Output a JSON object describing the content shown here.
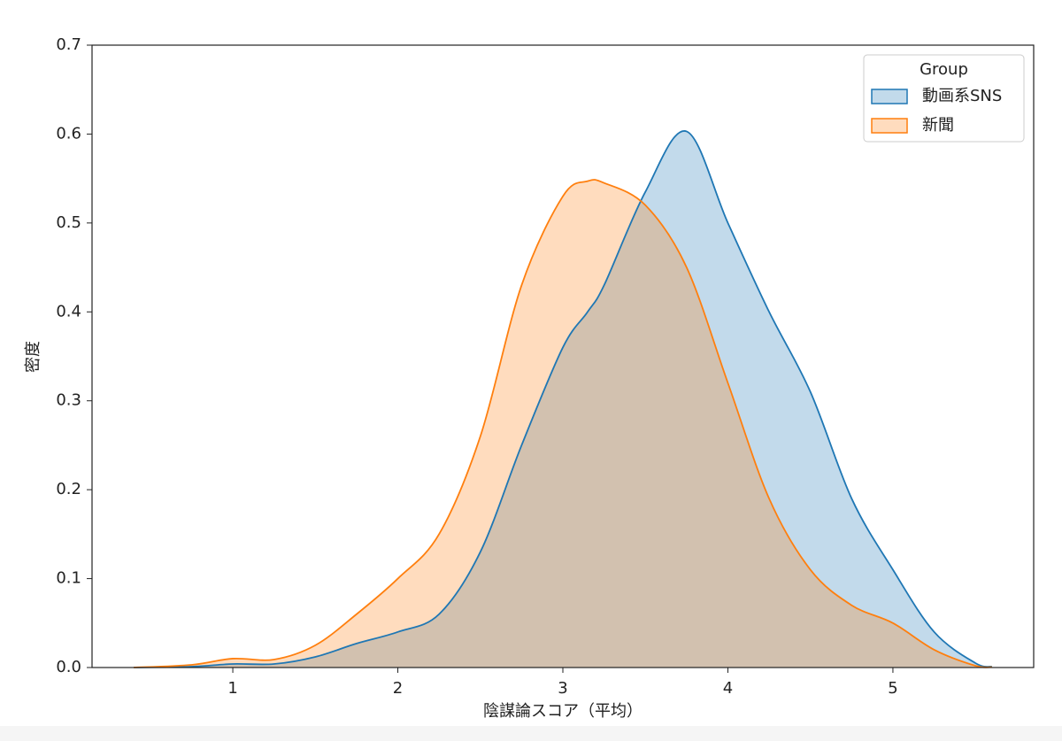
{
  "chart_data": {
    "type": "kde",
    "xlabel": "陰謀論スコア（平均）",
    "ylabel": "密度",
    "x": [
      0.4,
      0.75,
      1,
      1.25,
      1.5,
      1.75,
      2,
      2.25,
      2.5,
      2.75,
      3,
      3.15,
      3.25,
      3.5,
      3.75,
      4,
      4.25,
      4.5,
      4.75,
      5,
      5.25,
      5.5,
      5.6
    ],
    "series": [
      {
        "name": "動画系SNS",
        "color": "#1f77b4",
        "values": [
          0,
          0.001,
          0.004,
          0.004,
          0.012,
          0.027,
          0.04,
          0.06,
          0.13,
          0.25,
          0.36,
          0.4,
          0.43,
          0.535,
          0.603,
          0.5,
          0.4,
          0.31,
          0.19,
          0.11,
          0.04,
          0.005,
          0.001
        ]
      },
      {
        "name": "新聞",
        "color": "#ff7f0e",
        "values": [
          0,
          0.003,
          0.01,
          0.009,
          0.025,
          0.06,
          0.1,
          0.15,
          0.26,
          0.43,
          0.53,
          0.547,
          0.545,
          0.52,
          0.45,
          0.32,
          0.19,
          0.11,
          0.07,
          0.05,
          0.02,
          0.002,
          0.0005
        ]
      }
    ],
    "xlim": [
      0.147,
      5.853
    ],
    "xticks": [
      1,
      2,
      3,
      4,
      5
    ],
    "ylim": [
      0,
      0.7
    ],
    "yticks": [
      {
        "value": 0,
        "label": "0.0"
      },
      0.1,
      0.2,
      0.3,
      0.4,
      0.5,
      0.6,
      0.7
    ],
    "legend_title": "Group",
    "legend": "upper right"
  }
}
